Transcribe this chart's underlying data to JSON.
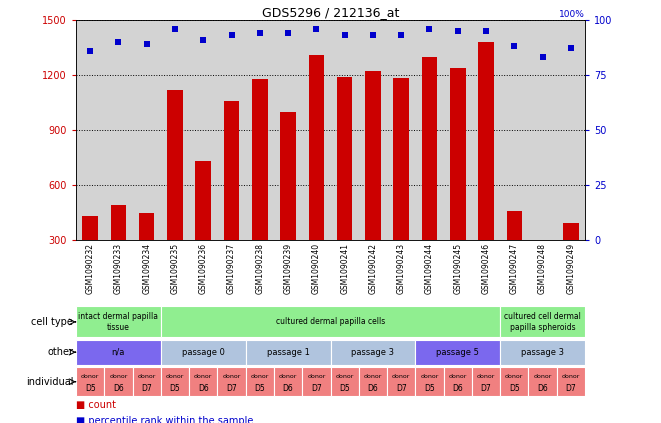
{
  "title": "GDS5296 / 212136_at",
  "samples": [
    "GSM1090232",
    "GSM1090233",
    "GSM1090234",
    "GSM1090235",
    "GSM1090236",
    "GSM1090237",
    "GSM1090238",
    "GSM1090239",
    "GSM1090240",
    "GSM1090241",
    "GSM1090242",
    "GSM1090243",
    "GSM1090244",
    "GSM1090245",
    "GSM1090246",
    "GSM1090247",
    "GSM1090248",
    "GSM1090249"
  ],
  "counts": [
    430,
    490,
    445,
    1120,
    730,
    1060,
    1180,
    1000,
    1310,
    1190,
    1220,
    1185,
    1300,
    1240,
    1380,
    455,
    255,
    390
  ],
  "percentiles": [
    86,
    90,
    89,
    96,
    91,
    93,
    94,
    94,
    96,
    93,
    93,
    93,
    96,
    95,
    95,
    88,
    83,
    87
  ],
  "ylim_left": [
    300,
    1500
  ],
  "ylim_right": [
    0,
    100
  ],
  "yticks_left": [
    300,
    600,
    900,
    1200,
    1500
  ],
  "yticks_right": [
    0,
    25,
    50,
    75,
    100
  ],
  "bar_color": "#cc0000",
  "dot_color": "#0000cc",
  "bg_color": "#d3d3d3",
  "cell_type_groups": [
    {
      "label": "intact dermal papilla\ntissue",
      "start": 0,
      "end": 3,
      "color": "#90ee90"
    },
    {
      "label": "cultured dermal papilla cells",
      "start": 3,
      "end": 15,
      "color": "#90ee90"
    },
    {
      "label": "cultured cell dermal\npapilla spheroids",
      "start": 15,
      "end": 18,
      "color": "#90ee90"
    }
  ],
  "other_groups": [
    {
      "label": "n/a",
      "start": 0,
      "end": 3,
      "color": "#7b68ee"
    },
    {
      "label": "passage 0",
      "start": 3,
      "end": 6,
      "color": "#b0c4de"
    },
    {
      "label": "passage 1",
      "start": 6,
      "end": 9,
      "color": "#b0c4de"
    },
    {
      "label": "passage 3",
      "start": 9,
      "end": 12,
      "color": "#b0c4de"
    },
    {
      "label": "passage 5",
      "start": 12,
      "end": 15,
      "color": "#7b68ee"
    },
    {
      "label": "passage 3",
      "start": 15,
      "end": 18,
      "color": "#b0c4de"
    }
  ],
  "donors": [
    "D5",
    "D6",
    "D7",
    "D5",
    "D6",
    "D7",
    "D5",
    "D6",
    "D7",
    "D5",
    "D6",
    "D7",
    "D5",
    "D6",
    "D7",
    "D5",
    "D6",
    "D7"
  ],
  "donor_color": "#f08080",
  "row_labels": [
    "cell type",
    "other",
    "individual"
  ],
  "legend_items": [
    {
      "color": "#cc0000",
      "label": "count"
    },
    {
      "color": "#0000cc",
      "label": "percentile rank within the sample"
    }
  ]
}
